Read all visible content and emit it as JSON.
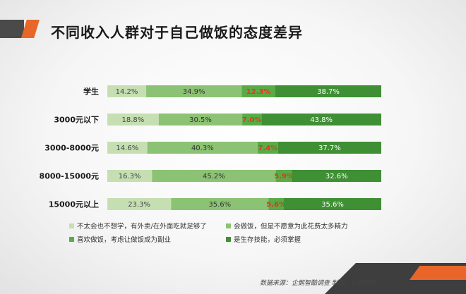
{
  "page": {
    "title": "不同收入人群对于自己做饭的态度差异",
    "source": "数据来源：企鹅智酷调查 制图：企鹅智酷"
  },
  "chart_data": {
    "type": "bar",
    "orientation": "horizontal",
    "stacked": true,
    "percent": true,
    "categories": [
      "学生",
      "3000元以下",
      "3000-8000元",
      "8000-15000元",
      "15000元以上"
    ],
    "series": [
      {
        "name": "不太会也不想学，有外卖/在外面吃就足够了",
        "color": "#c5dfb2",
        "label_color": "#444444",
        "values": [
          14.2,
          18.8,
          14.6,
          16.3,
          23.3
        ]
      },
      {
        "name": "会做饭，但是不愿意为此花费太多精力",
        "color": "#8cc273",
        "label_color": "#333333",
        "values": [
          34.9,
          30.5,
          40.3,
          45.2,
          35.6
        ]
      },
      {
        "name": "喜欢做饭，考虑让做饭成为副业",
        "color": "#5aab47",
        "label_color": "#e3361c",
        "values": [
          12.3,
          7.0,
          7.4,
          5.9,
          5.6
        ]
      },
      {
        "name": "是生存技能，必须掌握",
        "color": "#3f8f34",
        "label_color": "#ffffff",
        "values": [
          38.7,
          43.8,
          37.7,
          32.6,
          35.6
        ]
      }
    ],
    "value_labels": [
      [
        "14.2%",
        "34.9%",
        "12.3%",
        "38.7%"
      ],
      [
        "18.8%",
        "30.5%",
        "7.0%",
        "43.8%"
      ],
      [
        "14.6%",
        "40.3%",
        "7.4%",
        "37.7%"
      ],
      [
        "16.3%",
        "45.2%",
        "5.9%",
        "32.6%"
      ],
      [
        "23.3%",
        "35.6%",
        "5.6%",
        "35.6%"
      ]
    ],
    "xlim": [
      0,
      100
    ],
    "legend_position": "bottom",
    "grid": false
  }
}
